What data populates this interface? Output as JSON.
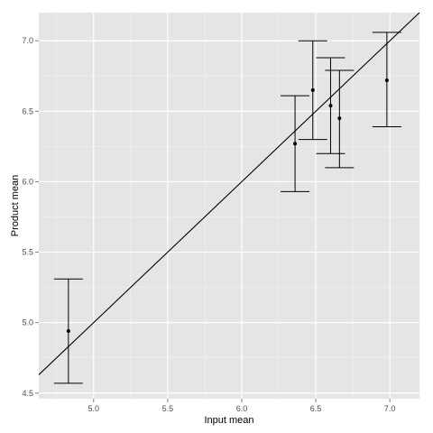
{
  "chart_data": {
    "type": "scatter",
    "title": "",
    "xlabel": "Input mean",
    "ylabel": "Product mean",
    "xlim": [
      4.63,
      7.2
    ],
    "ylim": [
      4.46,
      7.2
    ],
    "x_ticks": [
      5.0,
      5.5,
      6.0,
      6.5,
      7.0
    ],
    "x_tick_labels": [
      "5.0",
      "5.5",
      "6.0",
      "6.5",
      "7.0"
    ],
    "y_ticks": [
      4.5,
      5.0,
      5.5,
      6.0,
      6.5,
      7.0
    ],
    "y_tick_labels": [
      "4.5",
      "5.0",
      "5.5",
      "6.0",
      "6.5",
      "7.0"
    ],
    "grid": true,
    "background": "#e5e5e5",
    "points": [
      {
        "x": 4.83,
        "y": 4.94,
        "ymin": 4.57,
        "ymax": 5.31
      },
      {
        "x": 6.36,
        "y": 6.27,
        "ymin": 5.93,
        "ymax": 6.61
      },
      {
        "x": 6.48,
        "y": 6.65,
        "ymin": 6.3,
        "ymax": 7.0
      },
      {
        "x": 6.6,
        "y": 6.54,
        "ymin": 6.2,
        "ymax": 6.88
      },
      {
        "x": 6.66,
        "y": 6.45,
        "ymin": 6.1,
        "ymax": 6.79
      },
      {
        "x": 6.98,
        "y": 6.72,
        "ymin": 6.39,
        "ymax": 7.06
      }
    ],
    "reference_line": {
      "intercept": 0,
      "slope": 1
    }
  }
}
